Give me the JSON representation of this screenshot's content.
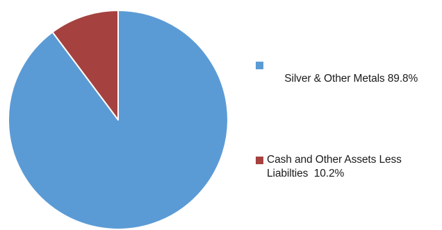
{
  "chart_data": {
    "type": "pie",
    "title": "",
    "slices": [
      {
        "label_lines": [
          "Silver & Other Metals 89.8%"
        ],
        "value": 89.8,
        "color": "#5b9bd5"
      },
      {
        "label_lines": [
          "Cash and Other Assets Less",
          "Liabilties  10.2%"
        ],
        "value": 10.2,
        "color": "#a5423f"
      }
    ],
    "start": "12 o'clock",
    "direction": "clockwise",
    "legend_position": "right"
  }
}
